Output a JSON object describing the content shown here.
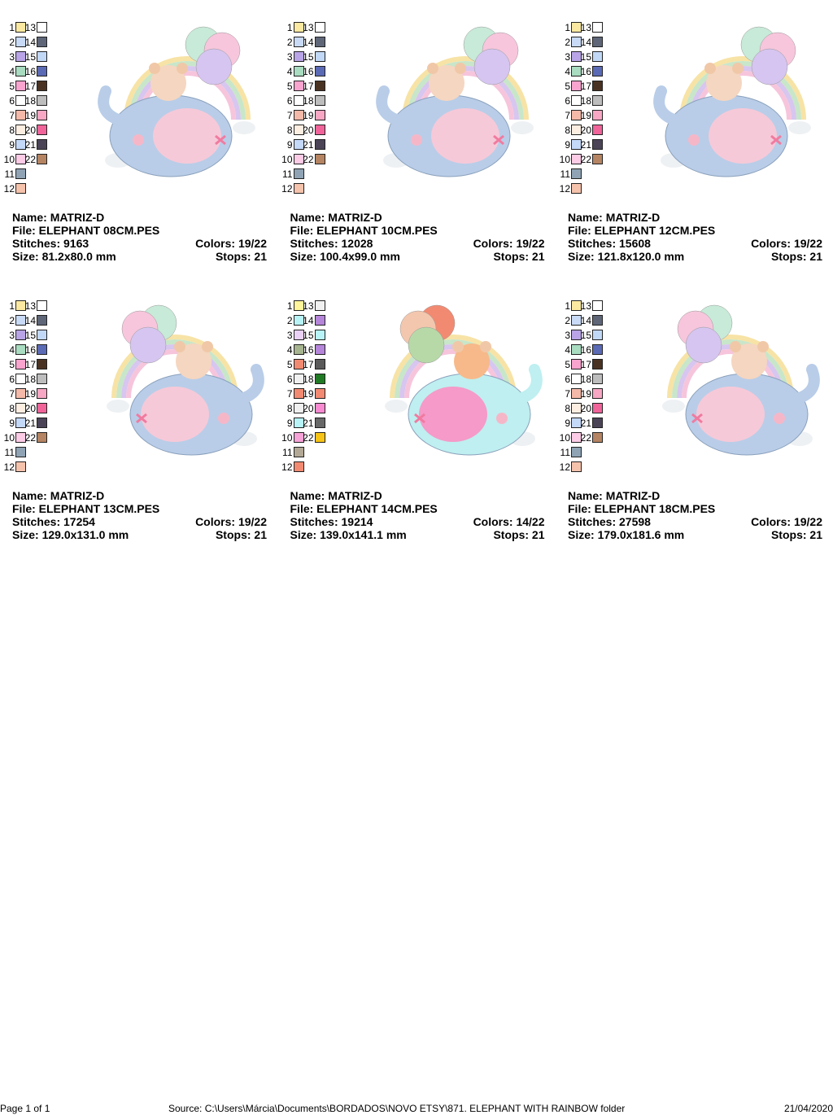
{
  "palette_default": [
    "#fbe9a1",
    "#c8daf5",
    "#b8a4e6",
    "#a9dcc0",
    "#f9a3cf",
    "#ffffff",
    "#f4b9a8",
    "#fdeee2",
    "#c4d8f8",
    "#fccbe6",
    "#8fa3b4",
    "#f5c2ac",
    "#ffffff",
    "#5e6678",
    "#c2d8f7",
    "#5b6ab5",
    "#4a3222",
    "#bdbdbd",
    "#f7a6c3",
    "#f0649a",
    "#4b4457",
    "#b58462"
  ],
  "palette_14cm": [
    "#fff59a",
    "#b7f3f7",
    "#ead1f5",
    "#a6b48f",
    "#f28a72",
    "#f0f0f0",
    "#f28a72",
    "#f0f0f0",
    "#b7f3f7",
    "#f7a3d8",
    "#b2a895",
    "#f28a72",
    "#f0f0f0",
    "#b585d9",
    "#b7f3f7",
    "#b585d9",
    "#5a5a5a",
    "#207a24",
    "#f28a72",
    "#f78ad0",
    "#686868",
    "#f7c315"
  ],
  "designs": [
    {
      "name_label": "Name:",
      "name": "MATRIZ-D",
      "file_label": "File:",
      "file": "ELEPHANT 08CM.PES",
      "stitches_label": "Stitches:",
      "stitches": "9163",
      "colors_label": "Colors:",
      "colors": "19/22",
      "size_label": "Size:",
      "size": "81.2x80.0 mm",
      "stops_label": "Stops:",
      "stops": "21",
      "palette": "default",
      "variant": "a"
    },
    {
      "name_label": "Name:",
      "name": "MATRIZ-D",
      "file_label": "File:",
      "file": "ELEPHANT 10CM.PES",
      "stitches_label": "Stitches:",
      "stitches": "12028",
      "colors_label": "Colors:",
      "colors": "19/22",
      "size_label": "Size:",
      "size": "100.4x99.0 mm",
      "stops_label": "Stops:",
      "stops": "21",
      "palette": "default",
      "variant": "a"
    },
    {
      "name_label": "Name:",
      "name": "MATRIZ-D",
      "file_label": "File:",
      "file": "ELEPHANT 12CM.PES",
      "stitches_label": "Stitches:",
      "stitches": "15608",
      "colors_label": "Colors:",
      "colors": "19/22",
      "size_label": "Size:",
      "size": "121.8x120.0 mm",
      "stops_label": "Stops:",
      "stops": "21",
      "palette": "default",
      "variant": "a"
    },
    {
      "name_label": "Name:",
      "name": "MATRIZ-D",
      "file_label": "File:",
      "file": "ELEPHANT 13CM.PES",
      "stitches_label": "Stitches:",
      "stitches": "17254",
      "colors_label": "Colors:",
      "colors": "19/22",
      "size_label": "Size:",
      "size": "129.0x131.0 mm",
      "stops_label": "Stops:",
      "stops": "21",
      "palette": "default",
      "variant": "b"
    },
    {
      "name_label": "Name:",
      "name": "MATRIZ-D",
      "file_label": "File:",
      "file": "ELEPHANT 14CM.PES",
      "stitches_label": "Stitches:",
      "stitches": "19214",
      "colors_label": "Colors:",
      "colors": "14/22",
      "size_label": "Size:",
      "size": "139.0x141.1 mm",
      "stops_label": "Stops:",
      "stops": "21",
      "palette": "14cm",
      "variant": "c"
    },
    {
      "name_label": "Name:",
      "name": "MATRIZ-D",
      "file_label": "File:",
      "file": "ELEPHANT 18CM.PES",
      "stitches_label": "Stitches:",
      "stitches": "27598",
      "colors_label": "Colors:",
      "colors": "19/22",
      "size_label": "Size:",
      "size": "179.0x181.6 mm",
      "stops_label": "Stops:",
      "stops": "21",
      "palette": "default",
      "variant": "b"
    }
  ],
  "footer": {
    "page": "Page 1 of 1",
    "source": "Source: C:\\Users\\Márcia\\Documents\\BORDADOS\\NOVO ETSY\\871. ELEPHANT WITH RAINBOW folder",
    "date": "21/04/2020"
  }
}
